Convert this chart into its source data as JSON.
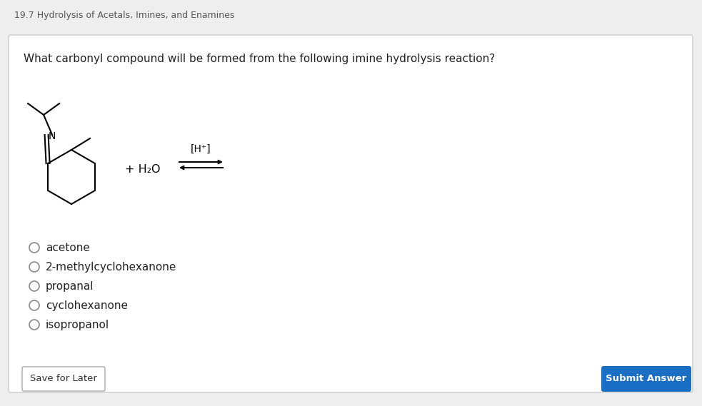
{
  "page_title": "19.7 Hydrolysis of Acetals, Imines, and Enamines",
  "question": "What carbonyl compound will be formed from the following imine hydrolysis reaction?",
  "choices": [
    "acetone",
    "2-methylcyclohexanone",
    "propanal",
    "cyclohexanone",
    "isopropanol"
  ],
  "reagent_label": "+ H₂O",
  "catalyst_label": "[H⁺]",
  "bg_color": "#ffffff",
  "outer_bg": "#eeeeee",
  "card_border": "#cccccc",
  "title_color": "#555555",
  "question_color": "#222222",
  "choice_color": "#222222",
  "save_btn_bg": "#ffffff",
  "save_btn_border": "#aaaaaa",
  "save_btn_text": "Save for Later",
  "submit_btn_bg": "#1a6fc4",
  "submit_btn_text": "Submit Answer",
  "submit_btn_text_color": "#ffffff"
}
